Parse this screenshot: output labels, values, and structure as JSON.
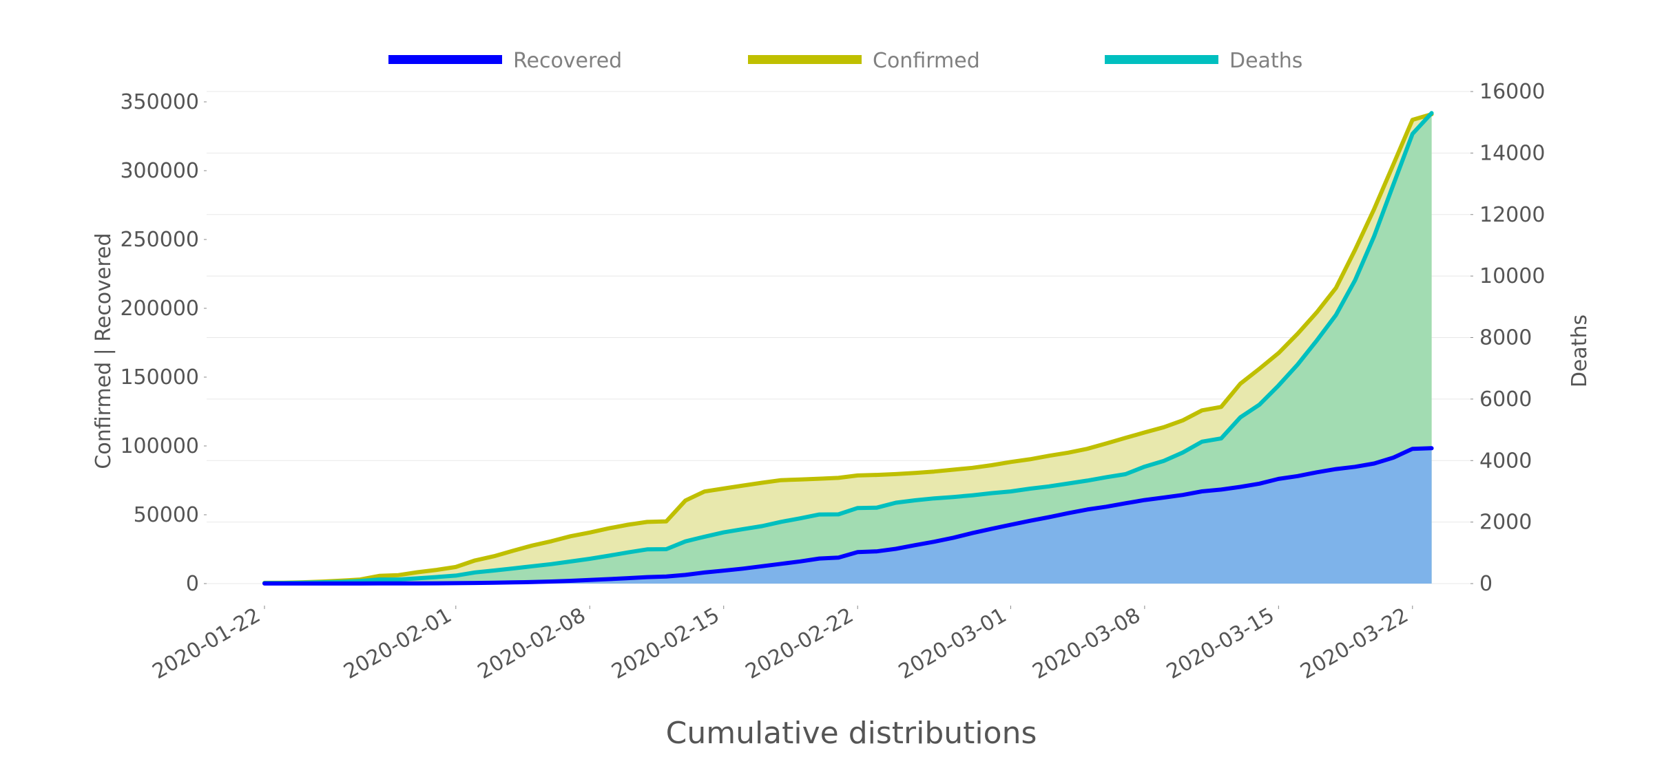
{
  "chart_data": {
    "type": "area",
    "title": "Cumulative distributions",
    "ylabel_left": "Confirmed | Recovered",
    "ylabel_right": "Deaths",
    "x_start": "2020-01-22",
    "x": [
      "2020-01-22",
      "2020-01-23",
      "2020-01-24",
      "2020-01-25",
      "2020-01-26",
      "2020-01-27",
      "2020-01-28",
      "2020-01-29",
      "2020-01-30",
      "2020-01-31",
      "2020-02-01",
      "2020-02-02",
      "2020-02-03",
      "2020-02-04",
      "2020-02-05",
      "2020-02-06",
      "2020-02-07",
      "2020-02-08",
      "2020-02-09",
      "2020-02-10",
      "2020-02-11",
      "2020-02-12",
      "2020-02-13",
      "2020-02-14",
      "2020-02-15",
      "2020-02-16",
      "2020-02-17",
      "2020-02-18",
      "2020-02-19",
      "2020-02-20",
      "2020-02-21",
      "2020-02-22",
      "2020-02-23",
      "2020-02-24",
      "2020-02-25",
      "2020-02-26",
      "2020-02-27",
      "2020-02-28",
      "2020-02-29",
      "2020-03-01",
      "2020-03-02",
      "2020-03-03",
      "2020-03-04",
      "2020-03-05",
      "2020-03-06",
      "2020-03-07",
      "2020-03-08",
      "2020-03-09",
      "2020-03-10",
      "2020-03-11",
      "2020-03-12",
      "2020-03-13",
      "2020-03-14",
      "2020-03-15",
      "2020-03-16",
      "2020-03-17",
      "2020-03-18",
      "2020-03-19",
      "2020-03-20",
      "2020-03-21",
      "2020-03-22",
      "2020-03-23"
    ],
    "x_ticks": [
      "2020-01-22",
      "2020-02-01",
      "2020-02-08",
      "2020-02-15",
      "2020-02-22",
      "2020-03-01",
      "2020-03-08",
      "2020-03-15",
      "2020-03-22"
    ],
    "ylim_left": [
      0,
      350000
    ],
    "y_ticks_left": [
      0,
      50000,
      100000,
      150000,
      200000,
      250000,
      300000,
      350000
    ],
    "ylim_right": [
      0,
      16000
    ],
    "y_ticks_right": [
      0,
      2000,
      4000,
      6000,
      8000,
      10000,
      12000,
      14000,
      16000
    ],
    "grid": true,
    "legend_position": "top-center",
    "series": [
      {
        "name": "Recovered",
        "axis": "left",
        "color": "#0000ff",
        "fill": "#7eb3ea",
        "values": [
          28,
          30,
          36,
          39,
          52,
          61,
          107,
          126,
          143,
          222,
          284,
          472,
          623,
          852,
          1124,
          1487,
          2011,
          2616,
          3244,
          3946,
          4683,
          5150,
          6295,
          8058,
          9395,
          10865,
          12583,
          14352,
          16121,
          18177,
          18890,
          22886,
          23394,
          25227,
          27905,
          30384,
          33277,
          36711,
          39782,
          42716,
          45602,
          48228,
          51170,
          53796,
          55865,
          58358,
          60694,
          62494,
          64404,
          67003,
          68324,
          70251,
          72624,
          76034,
          78088,
          80840,
          83207,
          84854,
          87256,
          91499,
          97882,
          98351
        ]
      },
      {
        "name": "Confirmed",
        "axis": "left",
        "color": "#bfbf00",
        "fill": "#e8e8ad",
        "values": [
          555,
          654,
          941,
          1434,
          2118,
          2927,
          5578,
          6166,
          8234,
          9927,
          12038,
          16787,
          19881,
          23892,
          27635,
          30794,
          34391,
          37120,
          40150,
          42762,
          44802,
          45221,
          60368,
          66885,
          69030,
          71224,
          73258,
          75136,
          75639,
          76197,
          76819,
          78572,
          78958,
          79561,
          80406,
          81388,
          82746,
          84112,
          86011,
          88369,
          90306,
          92840,
          95120,
          97886,
          101801,
          105847,
          109821,
          113590,
          118620,
          125875,
          128352,
          145205,
          156101,
          167454,
          181574,
          197102,
          214821,
          242570,
          272208,
          304507,
          336953,
          341000
        ]
      },
      {
        "name": "Deaths",
        "axis": "right",
        "color": "#00bfbf",
        "fill": "#a2dcb2",
        "values": [
          17,
          18,
          26,
          42,
          56,
          82,
          131,
          133,
          171,
          213,
          259,
          362,
          426,
          492,
          564,
          634,
          719,
          806,
          906,
          1013,
          1113,
          1118,
          1371,
          1523,
          1666,
          1770,
          1868,
          2007,
          2122,
          2247,
          2251,
          2458,
          2469,
          2629,
          2708,
          2770,
          2814,
          2872,
          2941,
          2996,
          3085,
          3160,
          3254,
          3348,
          3460,
          3558,
          3802,
          3988,
          4262,
          4615,
          4720,
          5404,
          5819,
          6440,
          7126,
          7905,
          8733,
          9867,
          11299,
          12973,
          14623,
          15300
        ]
      }
    ]
  }
}
